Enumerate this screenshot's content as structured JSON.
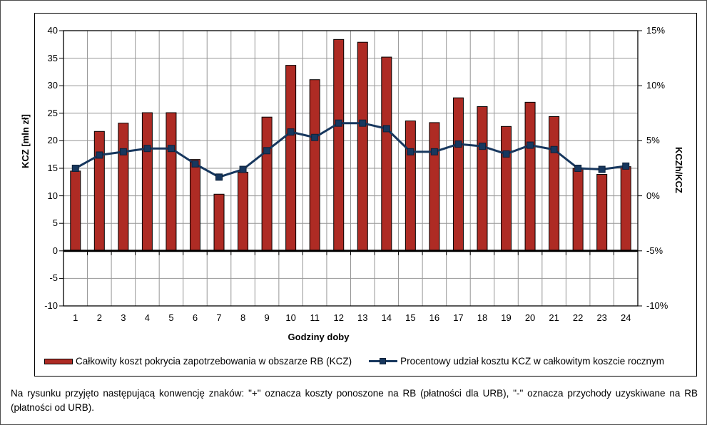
{
  "figure": {
    "caption": "Na rysunku przyjęto następującą konwencję znaków: \"+\" oznacza koszty ponoszone na RB (płatności dla URB), \"-\" oznacza przychody uzyskiwane na RB (płatności od URB)."
  },
  "chart_data": {
    "type": "bar",
    "subtype": "bar-and-line-dual-axis",
    "title": "",
    "xlabel": "Godziny doby",
    "ylabel_left": "KCZ [mln zł]",
    "ylabel_right": "KCZh/KCZ",
    "ylim_left": [
      -10,
      40
    ],
    "ytick_step_left": 5,
    "ylim_right_percent": [
      -10,
      15
    ],
    "ytick_step_right_percent": 5,
    "grid": true,
    "legend_position": "bottom",
    "categories": [
      "1",
      "2",
      "3",
      "4",
      "5",
      "6",
      "7",
      "8",
      "9",
      "10",
      "11",
      "12",
      "13",
      "14",
      "15",
      "16",
      "17",
      "18",
      "19",
      "20",
      "21",
      "22",
      "23",
      "24"
    ],
    "left_tick_labels": [
      "40",
      "35",
      "30",
      "25",
      "20",
      "15",
      "10",
      "5",
      "0",
      "-5",
      "-10"
    ],
    "right_tick_labels": [
      "15%",
      "10%",
      "5%",
      "0%",
      "-5%",
      "-10%"
    ],
    "series": [
      {
        "name": "Całkowity koszt pokrycia zapotrzebowania w obszarze RB (KCZ)",
        "chart_type": "bar",
        "axis": "left",
        "unit": "mln zł",
        "color": "#AE2B24",
        "border_color": "#000000",
        "values": [
          14.5,
          21.7,
          23.2,
          25.1,
          25.1,
          16.6,
          10.3,
          14.3,
          24.3,
          33.7,
          31.1,
          38.4,
          37.9,
          35.2,
          23.6,
          23.3,
          27.8,
          26.2,
          22.6,
          27.0,
          24.4,
          15.0,
          13.9,
          15.3
        ]
      },
      {
        "name": "Procentowy udział kosztu KCZ w całkowitym koszcie rocznym",
        "chart_type": "line",
        "axis": "right",
        "unit": "%",
        "color": "#17375E",
        "marker": "square",
        "values": [
          2.5,
          3.7,
          4.0,
          4.3,
          4.3,
          2.9,
          1.7,
          2.4,
          4.1,
          5.8,
          5.3,
          6.6,
          6.6,
          6.1,
          4.0,
          4.0,
          4.7,
          4.5,
          3.8,
          4.6,
          4.2,
          2.5,
          2.4,
          2.7
        ]
      }
    ],
    "colors": {
      "gridline": "#969696",
      "axis": "#000000",
      "background": "#ffffff"
    }
  }
}
